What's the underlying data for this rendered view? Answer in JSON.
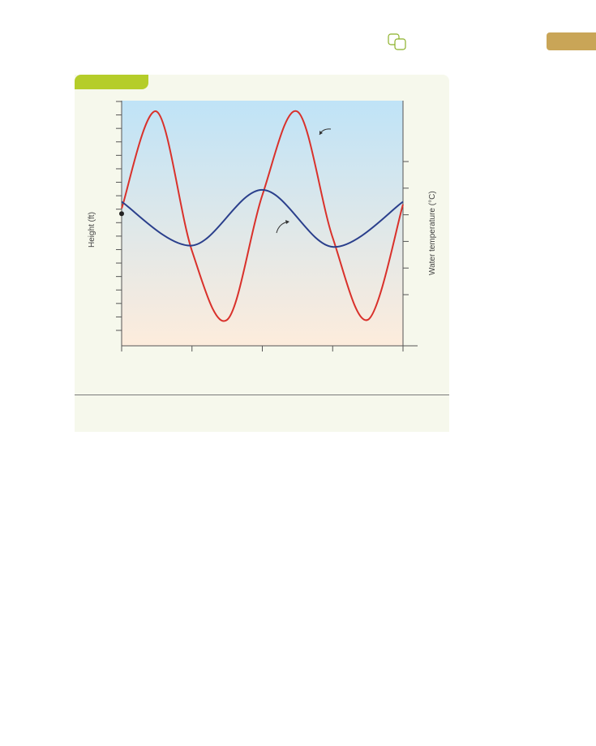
{
  "chart_data": {
    "type": "line",
    "xlabel": "",
    "ylabel": "Height (ft)",
    "ylabel_right": "Water temperature (°C)",
    "grid": false,
    "legend": "none",
    "x_ticks": 5,
    "y_left_ticks": 18,
    "y_right_ticks": 6,
    "series": [
      {
        "color": "#d9312b",
        "axis": "left",
        "points": [
          [
            0,
            9.2
          ],
          [
            0.25,
            16.5
          ],
          [
            0.5,
            6.0
          ],
          [
            0.75,
            0.8
          ],
          [
            1.0,
            10.2
          ],
          [
            1.25,
            16.5
          ],
          [
            1.5,
            7.0
          ],
          [
            1.75,
            0.8
          ],
          [
            2.0,
            9.5
          ]
        ]
      },
      {
        "color": "#2a3f8c",
        "axis": "left",
        "points": [
          [
            0,
            9.7
          ],
          [
            0.5,
            6.4
          ],
          [
            1.0,
            10.6
          ],
          [
            1.5,
            6.3
          ],
          [
            2.0,
            9.7
          ]
        ]
      }
    ],
    "start_point": {
      "x": 0,
      "y": 8.8
    },
    "annotations": [
      "arrow to red curve",
      "arrow to blue curve"
    ]
  },
  "colors": {
    "panel": "#f6f8ec",
    "figure_tag": "#b5cd2a",
    "corner_tab": "#c9a557",
    "gradient_top": "#bfe3f7",
    "gradient_bottom": "#fdecdc",
    "red_series": "#d9312b",
    "blue_series": "#2a3f8c"
  }
}
